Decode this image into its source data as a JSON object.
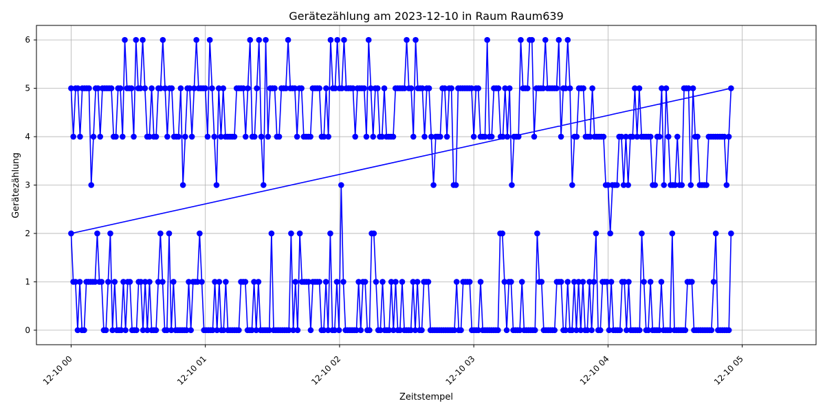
{
  "chart_data": {
    "type": "line",
    "title": "Gerätezählung am 2023-12-10 in Raum Raum639",
    "xlabel": "Zeitstempel",
    "ylabel": "Gerätezählung",
    "x_tick_labels": [
      "12-10 00",
      "12-10 01",
      "12-10 02",
      "12-10 03",
      "12-10 04",
      "12-10 05"
    ],
    "y_tick_labels": [
      "0",
      "1",
      "2",
      "3",
      "4",
      "5",
      "6"
    ],
    "x_ticks_minutes": [
      0,
      60,
      120,
      180,
      240,
      300
    ],
    "y_ticks": [
      0,
      1,
      2,
      3,
      4,
      5,
      6
    ],
    "xlim_minutes": [
      -15.5,
      333
    ],
    "ylim": [
      -0.3,
      6.3
    ],
    "grid": true,
    "line_color": "#0000ff",
    "series": [
      {
        "values": [
          5,
          4,
          5,
          5,
          4,
          5,
          5,
          5,
          5,
          3,
          4,
          5,
          5,
          4,
          5,
          5,
          5,
          5,
          5,
          4,
          4,
          5,
          5,
          4,
          6,
          5,
          5,
          5,
          4,
          6,
          5,
          5,
          6,
          5,
          4,
          4,
          5,
          4,
          4,
          5,
          5,
          6,
          5,
          4,
          5,
          5,
          4,
          4,
          4,
          5,
          3,
          4,
          5,
          5,
          4,
          5,
          6,
          5,
          5,
          5,
          5,
          4,
          6,
          5,
          4,
          3,
          5,
          4,
          5,
          4,
          4,
          4,
          4,
          4,
          5,
          5,
          5,
          5,
          4,
          5,
          6,
          4,
          4,
          5,
          6,
          4,
          3,
          6,
          4,
          5,
          5,
          5,
          4,
          4,
          5,
          5,
          5,
          6,
          5,
          5,
          5,
          4,
          5,
          5,
          4,
          4,
          4,
          4,
          5,
          5,
          5,
          5,
          4,
          4,
          5,
          4,
          6,
          5,
          5,
          6,
          5,
          5,
          6,
          5,
          5,
          5,
          5,
          4,
          5,
          5,
          5,
          5,
          4,
          6,
          5,
          4,
          5,
          5,
          4,
          4,
          5,
          4,
          4,
          4,
          4,
          5,
          5,
          5,
          5,
          5,
          6,
          5,
          5,
          4,
          6,
          5,
          5,
          5,
          4,
          5,
          5,
          4,
          3,
          4,
          4,
          4,
          5,
          5,
          4,
          5,
          5,
          3,
          3,
          5,
          5,
          5,
          5,
          5,
          5,
          5,
          4,
          5,
          5,
          4,
          4,
          4,
          6,
          4,
          4,
          5,
          5,
          5,
          4,
          4,
          5,
          4,
          5,
          3,
          4,
          4,
          4,
          6,
          5,
          5,
          5,
          6,
          6,
          4,
          5,
          5,
          5,
          5,
          6,
          5,
          5,
          5,
          5,
          5,
          6,
          4,
          5,
          5,
          6,
          5,
          3,
          4,
          4,
          5,
          5,
          5,
          4,
          4,
          4,
          5,
          4,
          4,
          4,
          4,
          4,
          3,
          3,
          2,
          3,
          3,
          3,
          4,
          4,
          3,
          4,
          3,
          4,
          4,
          5,
          4,
          5,
          4,
          4,
          4,
          4,
          4,
          3,
          3,
          4,
          4,
          5,
          3,
          5,
          4,
          3,
          3,
          3,
          4,
          3,
          3,
          5,
          5,
          5,
          3,
          5,
          4,
          4,
          3,
          3,
          3,
          3,
          4,
          4,
          4,
          4,
          4,
          4,
          4,
          4,
          3,
          4,
          5
        ]
      },
      {
        "values": [
          2,
          1,
          1,
          0,
          1,
          0,
          0,
          1,
          1,
          1,
          1,
          1,
          2,
          1,
          1,
          0,
          0,
          1,
          2,
          0,
          1,
          0,
          0,
          0,
          1,
          0,
          1,
          1,
          0,
          0,
          0,
          1,
          1,
          0,
          1,
          0,
          1,
          0,
          0,
          0,
          1,
          2,
          1,
          0,
          0,
          2,
          0,
          1,
          0,
          0,
          0,
          0,
          0,
          0,
          1,
          0,
          1,
          1,
          1,
          2,
          1,
          0,
          0,
          0,
          0,
          0,
          1,
          0,
          1,
          0,
          0,
          1,
          0,
          0,
          0,
          0,
          0,
          0,
          1,
          1,
          1,
          0,
          0,
          0,
          1,
          0,
          1,
          0,
          0,
          0,
          0,
          0,
          2,
          0,
          0,
          0,
          0,
          0,
          0,
          0,
          0,
          2,
          0,
          1,
          0,
          2,
          1,
          1,
          1,
          1,
          0,
          1,
          1,
          1,
          1,
          0,
          0,
          1,
          0,
          2,
          0,
          0,
          1,
          0,
          3,
          1,
          0,
          0,
          0,
          0,
          0,
          0,
          1,
          0,
          1,
          1,
          0,
          0,
          2,
          2,
          1,
          0,
          0,
          1,
          0,
          0,
          0,
          1,
          0,
          1,
          0,
          0,
          1,
          0,
          0,
          0,
          0,
          1,
          0,
          1,
          0,
          0,
          1,
          1,
          1,
          0,
          0,
          0,
          0,
          0,
          0,
          0,
          0,
          0,
          0,
          0,
          0,
          1,
          0,
          0,
          1,
          1,
          1,
          1,
          0,
          0,
          0,
          0,
          1,
          0,
          0,
          0,
          0,
          0,
          0,
          0,
          0,
          2,
          2,
          1,
          0,
          1,
          1,
          0,
          0,
          0,
          0,
          1,
          0,
          0,
          0,
          0,
          0,
          0,
          2,
          1,
          1,
          0,
          0,
          0,
          0,
          0,
          0,
          1,
          1,
          1,
          0,
          0,
          1,
          0,
          0,
          1,
          0,
          1,
          0,
          1,
          0,
          0,
          1,
          0,
          1,
          2,
          0,
          0,
          1,
          1,
          1,
          0,
          1,
          0,
          0,
          0,
          0,
          1,
          1,
          0,
          1,
          0,
          0,
          0,
          0,
          0,
          2,
          1,
          0,
          0,
          1,
          0,
          0,
          0,
          0,
          1,
          0,
          0,
          0,
          0,
          2,
          0,
          0,
          0,
          0,
          0,
          0,
          1,
          1,
          1,
          0,
          0,
          0,
          0,
          0,
          0,
          0,
          0,
          0,
          1,
          2,
          0,
          0,
          0,
          0,
          0,
          0,
          2
        ]
      }
    ]
  }
}
